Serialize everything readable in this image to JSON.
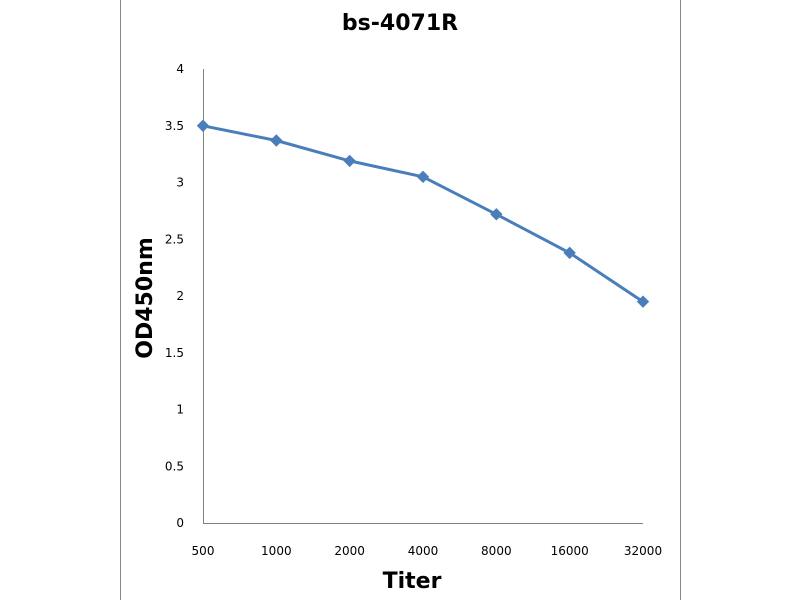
{
  "chart_data": {
    "type": "line",
    "title": "bs-4071R",
    "xlabel": "Titer",
    "ylabel": "OD450nm",
    "categories": [
      "500",
      "1000",
      "2000",
      "4000",
      "8000",
      "16000",
      "32000"
    ],
    "series": [
      {
        "values": [
          3.5,
          3.37,
          3.19,
          3.05,
          2.72,
          2.38,
          1.95
        ]
      }
    ],
    "ylim": [
      0,
      4
    ],
    "yticks": [
      "0",
      "0.5",
      "1",
      "1.5",
      "2",
      "2.5",
      "3",
      "3.5",
      "4"
    ],
    "grid": false,
    "legend": "none",
    "colors": {
      "series": "#4a7ebb",
      "axis": "#808080",
      "frame": "#888888"
    }
  }
}
